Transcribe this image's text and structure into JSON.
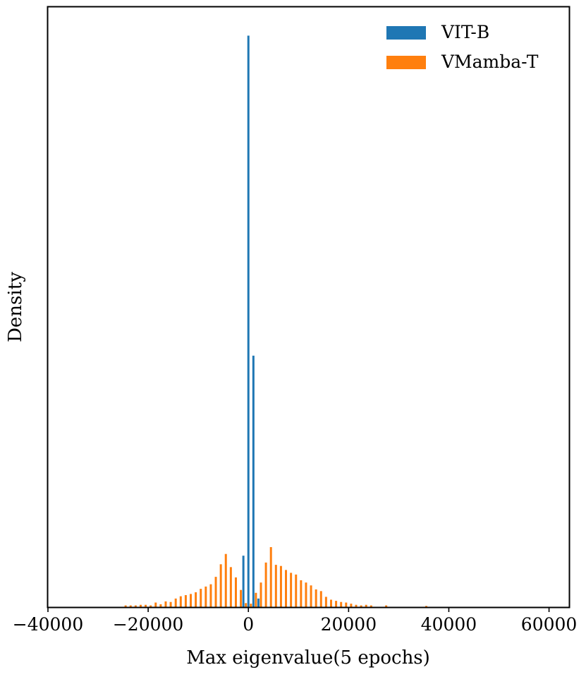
{
  "chart_data": {
    "type": "bar",
    "title": "",
    "xlabel": "Max eigenvalue(5 epochs)",
    "ylabel": "Density",
    "xlim": [
      -40000,
      64000
    ],
    "ylim": [
      0,
      1.05
    ],
    "xticks": [
      -40000,
      -20000,
      0,
      20000,
      40000,
      60000
    ],
    "xtick_labels": [
      "−40000",
      "−20000",
      "0",
      "20000",
      "40000",
      "60000"
    ],
    "yticks_shown": false,
    "grid": false,
    "legend_position": "top-right",
    "series": [
      {
        "name": "VIT-B",
        "color": "#1f77b4",
        "x": [
          -1000,
          0,
          1000,
          2000
        ],
        "y": [
          0.09,
          1.0,
          0.44,
          0.015
        ]
      },
      {
        "name": "VMamba-T",
        "color": "#ff7f0e",
        "x": [
          -24500,
          -23500,
          -22500,
          -21500,
          -20500,
          -19500,
          -18500,
          -17500,
          -16500,
          -15500,
          -14500,
          -13500,
          -12500,
          -11500,
          -10500,
          -9500,
          -8500,
          -7500,
          -6500,
          -5500,
          -4500,
          -3500,
          -2500,
          -1500,
          -500,
          500,
          1500,
          2500,
          3500,
          4500,
          5500,
          6500,
          7500,
          8500,
          9500,
          10500,
          11500,
          12500,
          13500,
          14500,
          15500,
          16500,
          17500,
          18500,
          19500,
          20500,
          21500,
          22500,
          23500,
          24500,
          27500,
          35500
        ],
        "y": [
          0.003,
          0.003,
          0.003,
          0.004,
          0.004,
          0.003,
          0.008,
          0.005,
          0.01,
          0.009,
          0.015,
          0.019,
          0.021,
          0.023,
          0.026,
          0.032,
          0.036,
          0.04,
          0.053,
          0.075,
          0.093,
          0.07,
          0.052,
          0.03,
          0.007,
          0.006,
          0.025,
          0.043,
          0.078,
          0.105,
          0.074,
          0.072,
          0.065,
          0.06,
          0.057,
          0.047,
          0.043,
          0.038,
          0.031,
          0.028,
          0.018,
          0.013,
          0.011,
          0.009,
          0.008,
          0.006,
          0.004,
          0.003,
          0.004,
          0.003,
          0.003,
          0.002
        ]
      }
    ]
  }
}
